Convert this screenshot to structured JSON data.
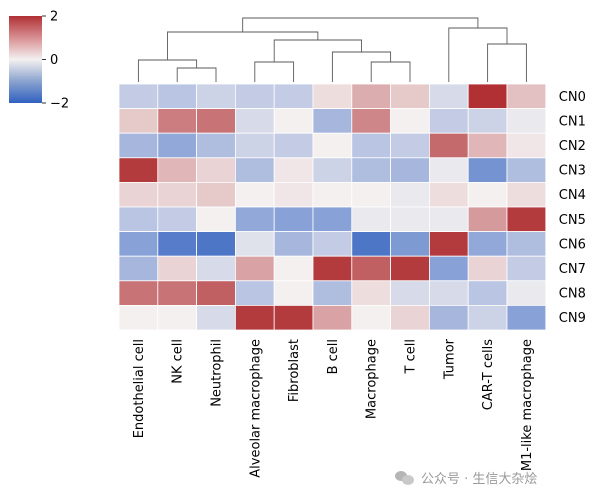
{
  "chart_data": {
    "type": "heatmap",
    "title": "",
    "xlabel": "",
    "ylabel": "",
    "columns": [
      "Endothelial cell",
      "NK cell",
      "Neutrophil",
      "Alveolar macrophage",
      "Fibroblast",
      "B cell",
      "Macrophage",
      "T cell",
      "Tumor",
      "CAR-T cells",
      "M1-like macrophage"
    ],
    "rows": [
      "CN0",
      "CN1",
      "CN2",
      "CN3",
      "CN4",
      "CN5",
      "CN6",
      "CN7",
      "CN8",
      "CN9"
    ],
    "values": [
      [
        -0.5,
        -0.6,
        -0.4,
        -0.5,
        -0.5,
        0.2,
        0.7,
        0.4,
        -0.3,
        2.0,
        0.5
      ],
      [
        0.4,
        1.2,
        1.3,
        -0.3,
        0.0,
        -0.8,
        1.1,
        0.0,
        -0.5,
        -0.4,
        -0.1
      ],
      [
        -0.8,
        -1.0,
        -0.7,
        -0.4,
        -0.5,
        0.0,
        -0.6,
        -0.5,
        1.4,
        0.6,
        0.1
      ],
      [
        1.9,
        0.6,
        0.3,
        -0.7,
        0.1,
        -0.4,
        -0.7,
        -0.8,
        -0.1,
        -1.3,
        -0.7
      ],
      [
        0.3,
        0.3,
        0.4,
        0.0,
        0.1,
        0.0,
        0.0,
        -0.1,
        0.2,
        0.0,
        0.2
      ],
      [
        -0.6,
        -0.5,
        0.0,
        -1.0,
        -1.1,
        -1.1,
        -0.1,
        -0.1,
        -0.1,
        0.9,
        1.9
      ],
      [
        -1.1,
        -1.6,
        -1.7,
        -0.2,
        -0.8,
        -0.5,
        -1.7,
        -1.2,
        1.9,
        -1.0,
        -0.7
      ],
      [
        -0.8,
        0.3,
        -0.3,
        0.8,
        0.0,
        1.9,
        1.5,
        1.9,
        -1.1,
        0.3,
        -0.5
      ],
      [
        1.3,
        1.3,
        1.5,
        -0.6,
        0.0,
        -0.7,
        0.2,
        -0.3,
        -0.3,
        -0.6,
        -0.1
      ],
      [
        0.0,
        0.0,
        -0.3,
        1.9,
        1.9,
        0.8,
        0.0,
        0.3,
        -0.8,
        -0.4,
        -1.1
      ]
    ],
    "colorbar": {
      "min": -2,
      "max": 2,
      "ticks": [
        2,
        0,
        -2
      ],
      "tick_labels": [
        "2",
        "0",
        "−2"
      ]
    },
    "colormap": {
      "low": "#3060c0",
      "mid": "#f4f0f0",
      "high": "#b03034"
    },
    "column_dendrogram": true,
    "row_dendrogram": false,
    "grid": false
  },
  "watermark": {
    "text": "公众号 · 生信大杂烩",
    "icon": "wechat-icon"
  }
}
